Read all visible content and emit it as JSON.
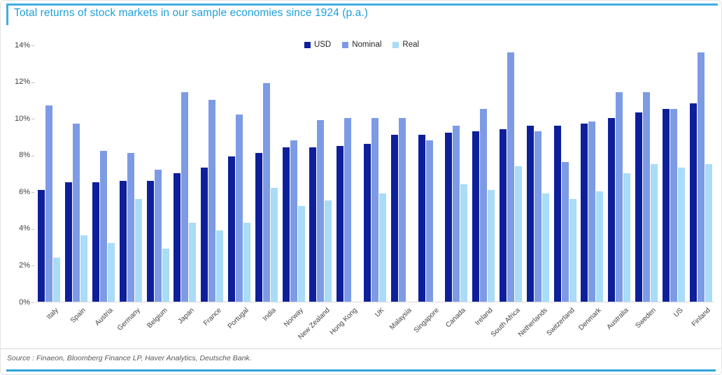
{
  "header": {
    "title": "Total returns of stock markets in our sample economies since 1924 (p.a.)"
  },
  "footer": {
    "source": "Source : Finaeon, Bloomberg Finance LP, Haver Analytics, Deutsche Bank."
  },
  "colors": {
    "accent_blue": "#41ade3",
    "title_blue": "#1f9fdb",
    "bottom_rule_blue": "#2fa3db",
    "axis_gray": "#d9d9d9",
    "label_gray": "#404040"
  },
  "chart_data": {
    "type": "bar",
    "title": "Total returns of stock markets in our sample economies since 1924 (p.a.)",
    "categories": [
      "Italy",
      "Spain",
      "Austria",
      "Germany",
      "Belgium",
      "Japan",
      "France",
      "Portugal",
      "India",
      "Norway",
      "New Zealand",
      "Hong Kong",
      "UK",
      "Malaysia",
      "Singapore",
      "Canada",
      "Ireland",
      "South Africa",
      "Netherlands",
      "Switzerland",
      "Denmark",
      "Australia",
      "Sweden",
      "US",
      "Finland"
    ],
    "series": [
      {
        "name": "USD",
        "color": "#0e1f9b",
        "values": [
          6.1,
          6.5,
          6.5,
          6.6,
          6.6,
          7.0,
          7.3,
          7.9,
          8.1,
          8.4,
          8.4,
          8.5,
          8.6,
          9.1,
          9.1,
          9.2,
          9.3,
          9.4,
          9.6,
          9.6,
          9.7,
          10.0,
          10.3,
          10.5,
          10.8
        ]
      },
      {
        "name": "Nominal",
        "color": "#7d9be5",
        "values": [
          10.7,
          9.7,
          8.2,
          8.1,
          7.2,
          11.4,
          11.0,
          10.2,
          11.9,
          8.8,
          9.9,
          10.0,
          10.0,
          10.0,
          8.8,
          9.6,
          10.5,
          13.6,
          9.3,
          7.6,
          9.8,
          11.4,
          11.4,
          10.5,
          13.6
        ]
      },
      {
        "name": "Real",
        "color": "#a9dcf7",
        "values": [
          2.4,
          3.6,
          3.2,
          5.6,
          2.9,
          4.3,
          3.9,
          4.3,
          6.2,
          5.2,
          5.5,
          null,
          5.9,
          null,
          null,
          6.4,
          6.1,
          7.4,
          5.9,
          5.6,
          6.0,
          7.0,
          7.5,
          7.3,
          7.5
        ]
      }
    ],
    "xlabel": "",
    "ylabel": "",
    "ylim": [
      0,
      14
    ],
    "y_ticks": [
      0,
      2,
      4,
      6,
      8,
      10,
      12,
      14
    ],
    "y_tick_labels": [
      "0%",
      "2%",
      "4%",
      "6%",
      "8%",
      "10%",
      "12%",
      "14%"
    ],
    "legend_position": "top-center",
    "grid": false
  }
}
